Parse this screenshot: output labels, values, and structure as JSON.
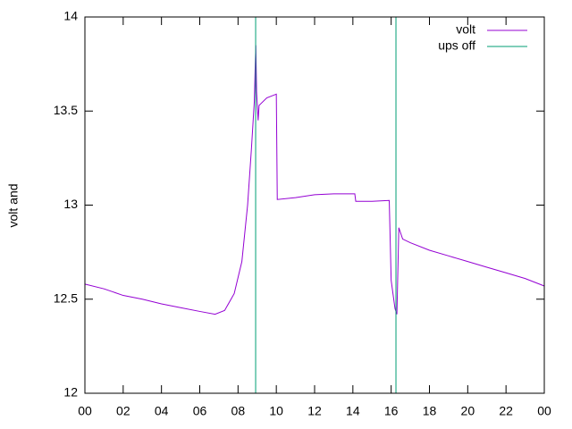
{
  "chart_data": {
    "type": "line",
    "ylabel": "volt and",
    "xlim": [
      0,
      24
    ],
    "xticks": [
      {
        "value": 0,
        "label": "00"
      },
      {
        "value": 2,
        "label": "02"
      },
      {
        "value": 4,
        "label": "04"
      },
      {
        "value": 6,
        "label": "06"
      },
      {
        "value": 8,
        "label": "08"
      },
      10,
      12,
      14,
      16,
      18,
      20,
      22,
      {
        "value": 24,
        "label": "00"
      }
    ],
    "ylim": [
      12,
      14
    ],
    "yticks": [
      12,
      12.5,
      13,
      13.5,
      14
    ],
    "legend": "top-right",
    "series": [
      {
        "name": "volt",
        "color": "#9400d3",
        "x": [
          0,
          1,
          2,
          3,
          4,
          5,
          6,
          6.8,
          7.3,
          7.8,
          8.2,
          8.5,
          8.7,
          8.85,
          8.9,
          8.93,
          8.97,
          9.05,
          9.1,
          9.5,
          10.0,
          10.05,
          11,
          12,
          13,
          14.1,
          14.15,
          15,
          15.9,
          16.0,
          16.2,
          16.3,
          16.35,
          16.4,
          16.6,
          17,
          18,
          19,
          20,
          21,
          22,
          23,
          24
        ],
        "values": [
          12.58,
          12.555,
          12.52,
          12.5,
          12.475,
          12.455,
          12.435,
          12.42,
          12.44,
          12.53,
          12.7,
          13.0,
          13.3,
          13.55,
          13.75,
          13.85,
          13.6,
          13.45,
          13.53,
          13.57,
          13.59,
          13.03,
          13.04,
          13.055,
          13.06,
          13.06,
          13.02,
          13.02,
          13.025,
          12.6,
          12.45,
          12.42,
          12.65,
          12.88,
          12.82,
          12.8,
          12.76,
          12.73,
          12.7,
          12.67,
          12.64,
          12.61,
          12.57
        ]
      },
      {
        "name": "ups off",
        "color": "#009e73",
        "x": [
          8.92,
          16.25
        ]
      }
    ]
  }
}
